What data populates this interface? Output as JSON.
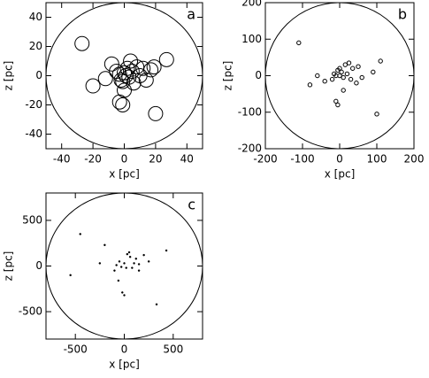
{
  "chart_data": [
    {
      "type": "scatter",
      "label": "a",
      "xlabel": "x [pc]",
      "ylabel": "z [pc]",
      "marker": "circle",
      "color": "#000000",
      "xlim": [
        -50,
        50
      ],
      "ylim": [
        -50,
        50
      ],
      "xticks": [
        -40,
        -20,
        0,
        20,
        40
      ],
      "yticks": [
        -40,
        -20,
        0,
        20,
        40
      ],
      "x": [
        -27,
        -20,
        -12,
        -5,
        -3,
        -2,
        0,
        2,
        3,
        5,
        6,
        8,
        10,
        12,
        14,
        17,
        19,
        27,
        20,
        -3,
        -1,
        0,
        -8,
        4,
        -1,
        1
      ],
      "y": [
        22,
        -7,
        -2,
        3,
        1,
        -3,
        2,
        5,
        -1,
        3,
        -5,
        6,
        0,
        5,
        -3,
        4,
        6,
        11,
        -26,
        -18,
        -20,
        -10,
        8,
        10,
        -4,
        0
      ]
    },
    {
      "type": "scatter",
      "label": "b",
      "xlabel": "x [pc]",
      "ylabel": "z [pc]",
      "marker": "circle",
      "color": "#000000",
      "xlim": [
        -200,
        200
      ],
      "ylim": [
        -200,
        200
      ],
      "xticks": [
        -200,
        -100,
        0,
        100,
        200
      ],
      "yticks": [
        -200,
        -100,
        0,
        100,
        200
      ],
      "x": [
        -110,
        110,
        -80,
        -60,
        -40,
        -10,
        -5,
        -15,
        -5,
        0,
        5,
        10,
        10,
        15,
        20,
        25,
        30,
        35,
        45,
        50,
        60,
        90,
        100,
        -20,
        0,
        -10
      ],
      "y": [
        90,
        40,
        -25,
        0,
        -15,
        -70,
        -80,
        5,
        15,
        0,
        10,
        -5,
        -40,
        30,
        5,
        35,
        -10,
        20,
        -20,
        25,
        -5,
        10,
        -105,
        -10,
        20,
        0
      ]
    },
    {
      "type": "scatter",
      "label": "c",
      "xlabel": "x [pc]",
      "ylabel": "z [pc]",
      "marker": "dot",
      "color": "#000000",
      "xlim": [
        -800,
        800
      ],
      "ylim": [
        -800,
        800
      ],
      "xticks": [
        -500,
        0,
        500
      ],
      "yticks": [
        -500,
        0,
        500
      ],
      "x": [
        -450,
        -200,
        -550,
        -250,
        -80,
        -50,
        -30,
        0,
        20,
        30,
        60,
        80,
        100,
        120,
        150,
        200,
        250,
        330,
        430,
        -20,
        0,
        -60,
        50,
        150,
        -100
      ],
      "y": [
        350,
        230,
        -100,
        30,
        10,
        50,
        -10,
        30,
        -20,
        130,
        100,
        -20,
        30,
        80,
        -50,
        120,
        50,
        -420,
        170,
        -290,
        -320,
        -160,
        150,
        20,
        -50
      ]
    }
  ]
}
